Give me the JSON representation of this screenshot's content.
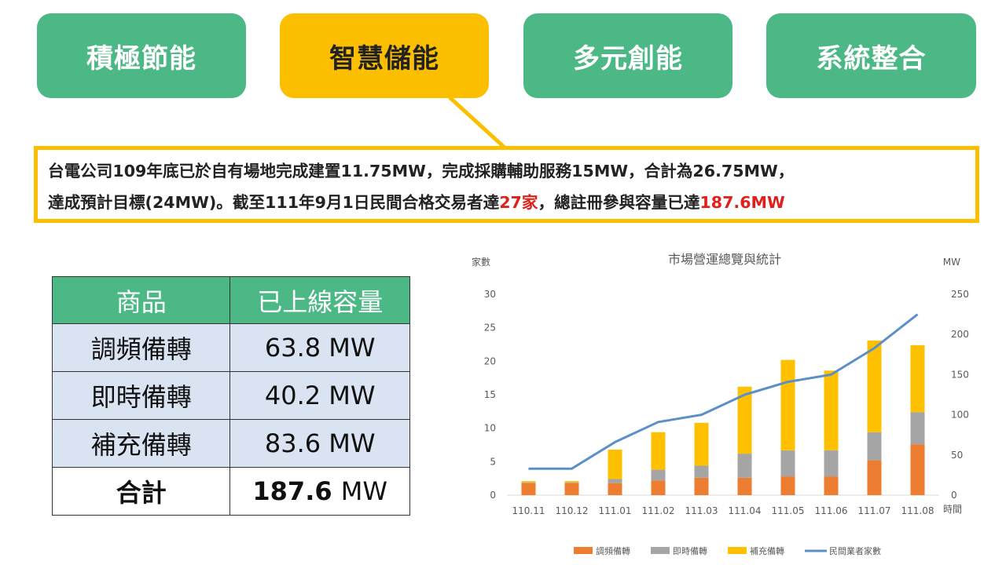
{
  "tabs": [
    {
      "label": "積極節能",
      "active": false
    },
    {
      "label": "智慧儲能",
      "active": true
    },
    {
      "label": "多元創能",
      "active": false
    },
    {
      "label": "系統整合",
      "active": false
    }
  ],
  "colors": {
    "green": "#4cb886",
    "yellow": "#fbbf00",
    "red": "#e0201c",
    "table_cell": "#d9e3f2"
  },
  "callout": {
    "line1": "台電公司109年底已於自有場地完成建置11.75MW，完成採購輔助服務15MW，合計為26.75MW，",
    "line2_prefix": "達成預計目標(24MW)。截至111年9月1日民間合格交易者達",
    "line2_count": "27家",
    "line2_middle": "，總註冊參與容量已達",
    "line2_capacity": "187.6MW"
  },
  "table": {
    "headers": [
      "商品",
      "已上線容量"
    ],
    "rows": [
      {
        "product": "調頻備轉",
        "capacity": "63.8 MW"
      },
      {
        "product": "即時備轉",
        "capacity": "40.2 MW"
      },
      {
        "product": "補充備轉",
        "capacity": "83.6 MW"
      }
    ],
    "total": {
      "label": "合計",
      "value": "187.6",
      "unit": "MW"
    }
  },
  "chart_data": {
    "type": "bar",
    "stacked": true,
    "title": "市場營運總覽與統計",
    "ylabel_left": "家數",
    "ylabel_right": "MW",
    "xlabel": "時間",
    "categories": [
      "110.11",
      "110.12",
      "111.01",
      "111.02",
      "111.03",
      "111.04",
      "111.05",
      "111.06",
      "111.07",
      "111.08"
    ],
    "ylim_left": [
      0,
      30
    ],
    "ylim_right": [
      0,
      250
    ],
    "yticks_left": [
      0,
      5,
      10,
      15,
      20,
      25,
      30
    ],
    "yticks_right": [
      0,
      50,
      100,
      150,
      200,
      250
    ],
    "series": [
      {
        "name": "調頻備轉",
        "type": "bar",
        "axis": "left",
        "color": "#ed7d31",
        "values": [
          1.8,
          1.8,
          1.8,
          2.2,
          2.6,
          2.6,
          2.8,
          2.8,
          5.2,
          7.6
        ]
      },
      {
        "name": "即時備轉",
        "type": "bar",
        "axis": "left",
        "color": "#a5a5a5",
        "values": [
          0.1,
          0.1,
          0.6,
          1.6,
          1.8,
          3.6,
          3.9,
          3.9,
          4.2,
          4.8
        ]
      },
      {
        "name": "補充備轉",
        "type": "bar",
        "axis": "left",
        "color": "#ffc000",
        "values": [
          0.2,
          0.2,
          4.4,
          5.6,
          6.4,
          10.0,
          13.5,
          11.9,
          13.7,
          10.0
        ]
      },
      {
        "name": "民間業者家數",
        "type": "line",
        "axis": "right",
        "color": "#5b8fc7",
        "values": [
          33,
          33,
          66,
          91,
          100,
          125,
          141,
          150,
          183,
          225
        ]
      }
    ],
    "grid": false,
    "legend": "bottom"
  }
}
